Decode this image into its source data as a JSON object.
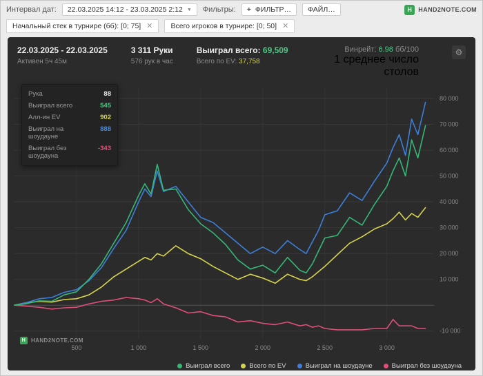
{
  "topbar": {
    "date_interval_label": "Интервал дат:",
    "date_range": "22.03.2025 14:12 - 23.03.2025 2:12",
    "filters_label": "Фильтры:",
    "add_filter_button": "ФИЛЬТР…",
    "file_button": "ФАЙЛ…",
    "brand": "HAND2NOTE.COM"
  },
  "filter_chips": [
    {
      "label": "Начальный стек в турнире (бб): [0; 75]"
    },
    {
      "label": "Всего игроков в турнире: [0; 50]"
    }
  ],
  "panel": {
    "date_range": "22.03.2025 - 22.03.2025",
    "active_time": "Активен 5ч 45м",
    "hands": "3 311 Руки",
    "hands_per_hour": "576 рук в час",
    "won_total_label": "Выиграл всего:",
    "won_total_value": "69,509",
    "ev_total_label": "Всего по EV:",
    "ev_total_value": "37,758",
    "winrate_label": "Винрейт:",
    "winrate_value": "6.98",
    "winrate_unit": "бб/100",
    "avg_tables": "1 среднее число столов",
    "watermark": "HAND2NOTE.COM"
  },
  "tooltip": {
    "rows": [
      {
        "label": "Рука",
        "value": "88",
        "color": "#e8e8e8"
      },
      {
        "label": "Выиграл всего",
        "value": "545",
        "color": "#4dc885"
      },
      {
        "label": "Алл-ин EV",
        "value": "902",
        "color": "#d3d34f"
      },
      {
        "label": "Выиграл на шоудауне",
        "value": "888",
        "color": "#4a86d8"
      },
      {
        "label": "Выиграл без шоудауна",
        "value": "-343",
        "color": "#e0527c"
      }
    ]
  },
  "chart_data": {
    "type": "line",
    "title": "",
    "xlabel": "hands",
    "ylabel": "chips won",
    "xlim": [
      0,
      3380
    ],
    "ylim": [
      -13000,
      84000
    ],
    "legend_position": "bottom",
    "x": [
      0,
      88,
      200,
      300,
      400,
      500,
      600,
      700,
      800,
      900,
      1000,
      1050,
      1100,
      1150,
      1200,
      1300,
      1400,
      1500,
      1600,
      1700,
      1800,
      1900,
      2000,
      2100,
      2200,
      2300,
      2350,
      2400,
      2450,
      2500,
      2600,
      2700,
      2800,
      2900,
      3000,
      3050,
      3100,
      3150,
      3200,
      3250,
      3311
    ],
    "series": [
      {
        "name": "Выиграл всего",
        "color": "#35b877",
        "values": [
          0,
          545,
          1700,
          1500,
          4000,
          5200,
          10000,
          16000,
          24000,
          32000,
          42500,
          47000,
          43000,
          54500,
          44500,
          45000,
          37000,
          31500,
          28000,
          23500,
          17500,
          14000,
          15500,
          12500,
          18500,
          13500,
          12500,
          16000,
          21000,
          26000,
          27000,
          34000,
          31000,
          39000,
          46000,
          52000,
          57000,
          50000,
          64000,
          57000,
          69509
        ]
      },
      {
        "name": "Всего по EV",
        "color": "#d6d44e",
        "values": [
          0,
          902,
          1500,
          1200,
          2200,
          2500,
          4000,
          7000,
          11000,
          14000,
          17000,
          18500,
          17500,
          20000,
          19000,
          23000,
          20000,
          18000,
          15000,
          12500,
          10000,
          12000,
          10500,
          8500,
          12000,
          10000,
          9500,
          11000,
          13000,
          15000,
          19500,
          24000,
          26500,
          29500,
          31500,
          33500,
          36000,
          33000,
          35500,
          34000,
          37758
        ]
      },
      {
        "name": "Выиграл на шоудауне",
        "color": "#3d7fd8",
        "values": [
          0,
          888,
          2500,
          3000,
          5000,
          6000,
          9500,
          14500,
          22000,
          29000,
          40000,
          45000,
          42000,
          52000,
          44000,
          46000,
          40000,
          34000,
          32000,
          28000,
          24000,
          20000,
          22500,
          20000,
          25000,
          21500,
          20000,
          24500,
          29000,
          35000,
          36500,
          43500,
          40500,
          48000,
          55000,
          61000,
          66000,
          58000,
          72000,
          66000,
          78500
        ]
      },
      {
        "name": "Выиграл без шоудауна",
        "color": "#e04f7a",
        "values": [
          0,
          -343,
          -800,
          -1500,
          -1000,
          -800,
          500,
          1500,
          2000,
          3000,
          2500,
          2000,
          1000,
          2500,
          500,
          -1000,
          -3000,
          -2500,
          -4000,
          -4500,
          -6500,
          -6000,
          -7000,
          -7500,
          -6500,
          -8000,
          -7500,
          -8500,
          -8000,
          -9000,
          -9500,
          -9500,
          -9500,
          -9000,
          -9000,
          -5500,
          -8000,
          -8000,
          -8000,
          -9000,
          -8991
        ]
      }
    ],
    "y_ticks": [
      {
        "value": 80000,
        "label": "80 000"
      },
      {
        "value": 70000,
        "label": "70 000"
      },
      {
        "value": 60000,
        "label": "60 000"
      },
      {
        "value": 50000,
        "label": "50 000"
      },
      {
        "value": 40000,
        "label": "40 000"
      },
      {
        "value": 30000,
        "label": "30 000"
      },
      {
        "value": 20000,
        "label": "20 000"
      },
      {
        "value": 10000,
        "label": "10 000"
      },
      {
        "value": 0,
        "label": ""
      },
      {
        "value": -10000,
        "label": "-10 000"
      }
    ],
    "x_ticks": [
      {
        "value": 500,
        "label": "500"
      },
      {
        "value": 1000,
        "label": "1 000"
      },
      {
        "value": 1500,
        "label": "1 500"
      },
      {
        "value": 2000,
        "label": "2 000"
      },
      {
        "value": 2500,
        "label": "2 500"
      },
      {
        "value": 3000,
        "label": "3 000"
      }
    ]
  }
}
